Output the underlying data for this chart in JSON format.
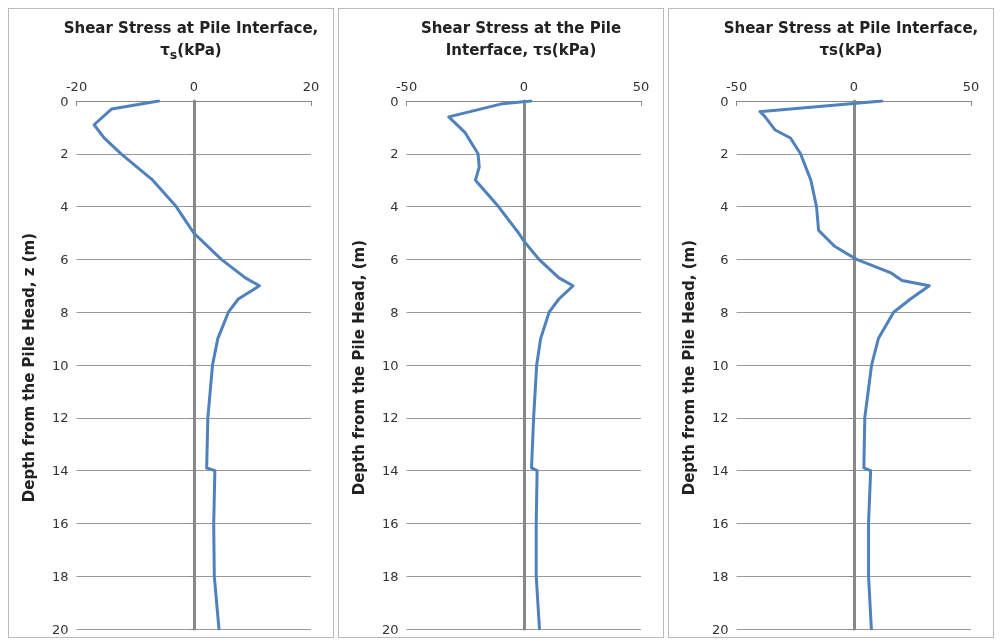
{
  "chart_data": [
    {
      "type": "line",
      "xlabel": "Shear Stress at Pile Interface, τ$_{s}$(kPa)",
      "ylabel": "Depth from the Pile Head, z (m)",
      "xlim": [
        -20,
        20
      ],
      "xticks": [
        -20,
        0,
        20
      ],
      "ylim": [
        20,
        0
      ],
      "yticks": [
        0,
        2,
        4,
        6,
        8,
        10,
        12,
        14,
        16,
        18,
        20
      ],
      "grid": "y",
      "series": [
        {
          "color": "#4f81bd",
          "x": [
            -6,
            -14,
            -17,
            -15.3,
            -12.4,
            -7,
            -3,
            0,
            4.7,
            8.8,
            11.2,
            7.6,
            5.9,
            4.1,
            3.2,
            2.4,
            2.2,
            3.6,
            3.4,
            3.5,
            4.3
          ],
          "values": [
            0,
            0.3,
            0.9,
            1.4,
            2,
            3,
            4,
            5,
            6,
            6.7,
            7,
            7.5,
            8,
            9,
            10,
            12,
            13.9,
            14,
            16,
            18,
            20
          ]
        }
      ]
    },
    {
      "type": "line",
      "xlabel": "Shear Stress at the Pile Interface, τs(kPa)",
      "ylabel": "Depth from the Pile Head, (m)",
      "xlim": [
        -50,
        50
      ],
      "xticks": [
        -50,
        0,
        50
      ],
      "ylim": [
        20,
        0
      ],
      "yticks": [
        0,
        2,
        4,
        6,
        8,
        10,
        12,
        14,
        16,
        18,
        20
      ],
      "grid": "y",
      "series": [
        {
          "color": "#4f81bd",
          "x": [
            3,
            -9,
            -32,
            -25,
            -19.5,
            -19,
            -20.6,
            -10.8,
            -2.2,
            0,
            6.5,
            15,
            21,
            15,
            10.8,
            7.2,
            5.5,
            4.2,
            3.3,
            5.7,
            5.3,
            5.3,
            6.7
          ],
          "values": [
            0,
            0.1,
            0.6,
            1.2,
            2,
            2.5,
            3,
            4,
            5,
            5.3,
            6,
            6.7,
            7,
            7.5,
            8,
            9,
            10,
            12,
            13.9,
            14,
            16,
            18,
            20
          ]
        }
      ]
    },
    {
      "type": "line",
      "xlabel": "Shear Stress at Pile Interface, τs(kPa)",
      "ylabel": "Depth from the Pile Head, (m)",
      "xlim": [
        -50,
        50
      ],
      "xticks": [
        -50,
        0,
        50
      ],
      "ylim": [
        20,
        0
      ],
      "yticks": [
        0,
        2,
        4,
        6,
        8,
        10,
        12,
        14,
        16,
        18,
        20
      ],
      "grid": "y",
      "series": [
        {
          "color": "#4f81bd",
          "x": [
            12,
            -40,
            -37.8,
            -33.5,
            -27,
            -22.7,
            -18.3,
            -15.9,
            -15,
            -8.2,
            1.2,
            15.6,
            20.6,
            32.2,
            24.2,
            17,
            10.5,
            7.6,
            4.7,
            4.3,
            7.2,
            6.3,
            6.3,
            7.5
          ],
          "values": [
            0,
            0.4,
            0.6,
            1.1,
            1.4,
            2,
            3,
            4,
            4.9,
            5.5,
            6,
            6.5,
            6.8,
            7,
            7.5,
            8,
            9,
            10,
            12,
            13.9,
            14,
            16,
            18,
            20
          ]
        }
      ]
    }
  ]
}
